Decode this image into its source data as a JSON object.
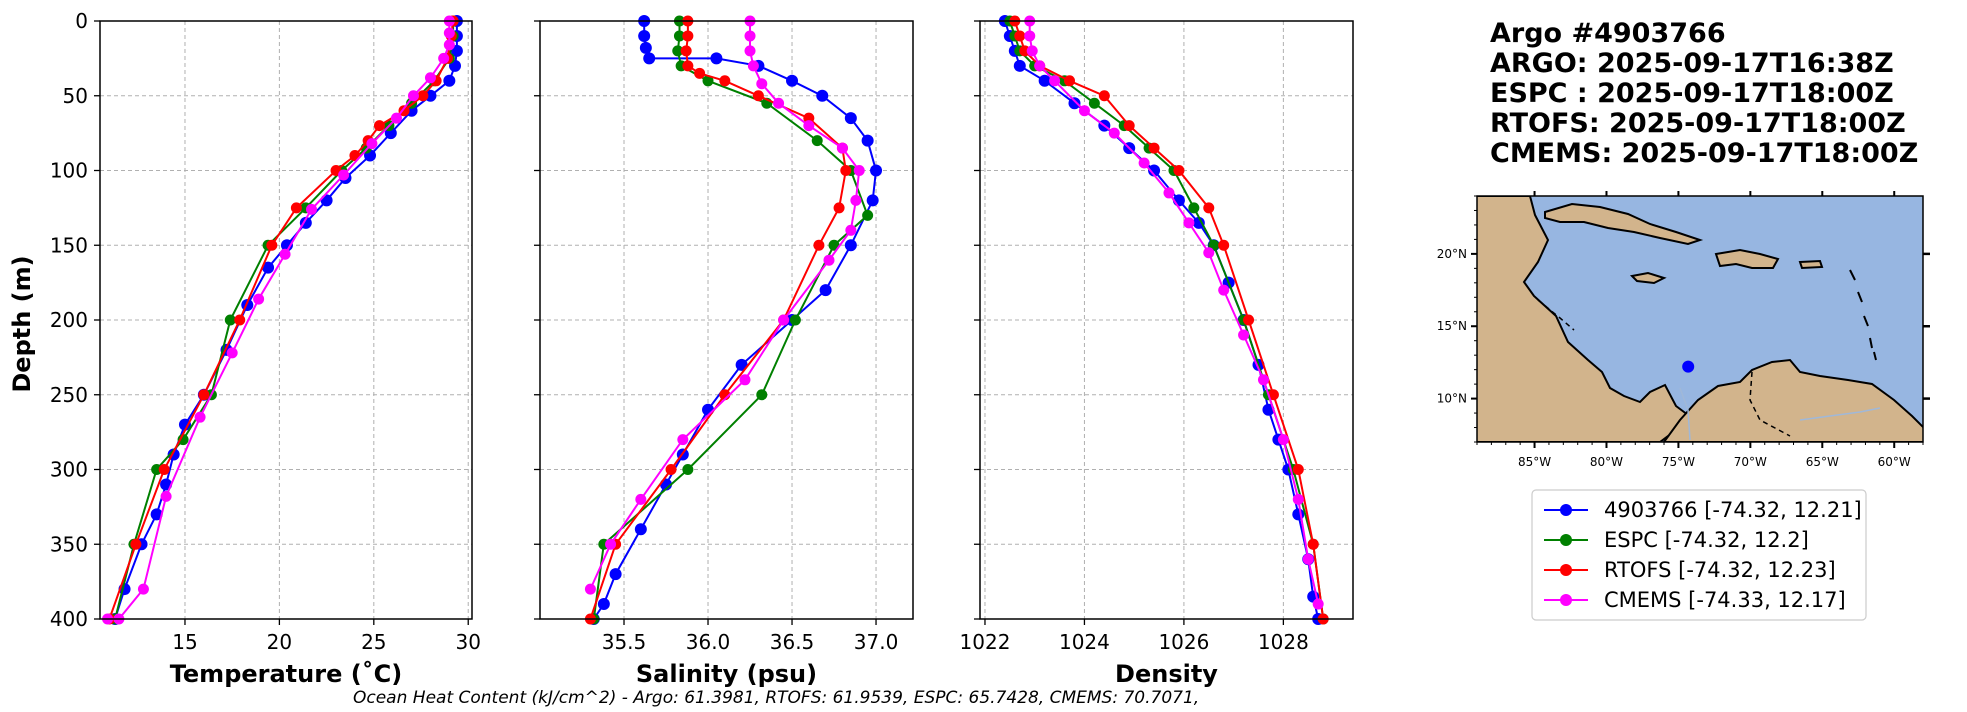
{
  "title_block": {
    "float_id": "Argo #4903766",
    "argo_time": "ARGO: 2025-09-17T16:38Z",
    "espc_time": "ESPC : 2025-09-17T18:00Z",
    "rtofs_time": "RTOFS: 2025-09-17T18:00Z",
    "cmems_time": "CMEMS: 2025-09-17T18:00Z"
  },
  "footer": "Ocean Heat Content (kJ/cm^2) - Argo: 61.3981,  RTOFS: 61.9539,  ESPC: 65.7428,  CMEMS: 70.7071,",
  "colors": {
    "argo": "#0000ff",
    "espc": "#008000",
    "rtofs": "#ff0000",
    "cmems": "#ff00ff",
    "ocean": "#97b6e1",
    "land": "#d2b48c"
  },
  "legend": [
    {
      "label": "4903766 [-74.32, 12.21]",
      "series": "argo"
    },
    {
      "label": "ESPC [-74.32, 12.2]",
      "series": "espc"
    },
    {
      "label": "RTOFS [-74.32, 12.23]",
      "series": "rtofs"
    },
    {
      "label": "CMEMS [-74.33, 12.17]",
      "series": "cmems"
    }
  ],
  "map": {
    "lon_range": [
      -89,
      -58
    ],
    "lat_range": [
      7,
      24
    ],
    "lon_ticks": [
      -85,
      -80,
      -75,
      -70,
      -65,
      -60
    ],
    "lon_tick_labels": [
      "85°W",
      "80°W",
      "75°W",
      "70°W",
      "65°W",
      "60°W"
    ],
    "lat_ticks": [
      20,
      15,
      10
    ],
    "lat_tick_labels": [
      "20°N",
      "15°N",
      "10°N"
    ],
    "float_position": {
      "lon": -74.32,
      "lat": 12.21
    }
  },
  "chart_data": [
    {
      "type": "line",
      "xlabel": "Temperature (˚C)",
      "ylabel": "Depth (m)",
      "xlim": [
        10.5,
        30.2
      ],
      "ylim": [
        400,
        0
      ],
      "xticks": [
        15,
        20,
        25,
        30
      ],
      "xtick_labels": [
        "15",
        "20",
        "25",
        "30"
      ],
      "yticks": [
        0,
        50,
        100,
        150,
        200,
        250,
        300,
        350,
        400
      ],
      "ytick_labels": [
        "0",
        "50",
        "100",
        "150",
        "200",
        "250",
        "300",
        "350",
        "400"
      ],
      "series": [
        {
          "name": "argo",
          "x": [
            29.4,
            29.4,
            29.4,
            29.3,
            29.0,
            28.0,
            27.0,
            25.9,
            24.8,
            23.5,
            22.5,
            21.4,
            20.4,
            19.4,
            18.3,
            17.2,
            16.0,
            15.0,
            14.4,
            14.0,
            13.5,
            12.7,
            11.8,
            11.3
          ],
          "y": [
            0,
            10,
            20,
            30,
            40,
            50,
            60,
            75,
            90,
            105,
            120,
            135,
            150,
            165,
            190,
            220,
            250,
            270,
            290,
            310,
            330,
            350,
            380,
            400
          ]
        },
        {
          "name": "espc",
          "x": [
            29.2,
            29.2,
            29.0,
            28.2,
            27.0,
            25.8,
            24.6,
            23.3,
            21.4,
            19.4,
            17.4,
            16.4,
            14.9,
            13.5,
            12.3,
            11.3
          ],
          "y": [
            0,
            10,
            25,
            40,
            55,
            70,
            85,
            100,
            125,
            150,
            200,
            250,
            280,
            300,
            350,
            400
          ]
        },
        {
          "name": "rtofs",
          "x": [
            29.2,
            29.1,
            28.9,
            28.3,
            27.6,
            26.6,
            25.3,
            24.7,
            24.0,
            23.0,
            20.9,
            19.6,
            17.9,
            16.0,
            13.9,
            12.4,
            11.0
          ],
          "y": [
            0,
            10,
            25,
            40,
            50,
            60,
            70,
            80,
            90,
            100,
            125,
            150,
            200,
            250,
            300,
            350,
            400
          ]
        },
        {
          "name": "cmems",
          "x": [
            29.0,
            29.0,
            29.0,
            28.7,
            28.0,
            27.1,
            26.2,
            24.9,
            23.4,
            21.7,
            20.3,
            18.9,
            17.5,
            15.8,
            14.0,
            12.8,
            11.5,
            10.9
          ],
          "y": [
            0,
            8,
            16,
            25,
            38,
            50,
            65,
            82,
            103,
            126,
            156,
            186,
            222,
            265,
            318,
            380,
            400,
            400
          ]
        }
      ]
    },
    {
      "type": "line",
      "xlabel": "Salinity (psu)",
      "ylabel": "",
      "xlim": [
        35.0,
        37.22
      ],
      "ylim": [
        400,
        0
      ],
      "xticks": [
        35.5,
        36.0,
        36.5,
        37.0
      ],
      "xtick_labels": [
        "35.5",
        "36.0",
        "36.5",
        "37.0"
      ],
      "yticks": [
        0,
        50,
        100,
        150,
        200,
        250,
        300,
        350,
        400
      ],
      "ytick_labels": [],
      "series": [
        {
          "name": "argo",
          "x": [
            35.62,
            35.62,
            35.63,
            35.65,
            36.05,
            36.3,
            36.5,
            36.68,
            36.85,
            36.95,
            37.0,
            36.98,
            36.85,
            36.7,
            36.5,
            36.2,
            36.0,
            35.85,
            35.75,
            35.6,
            35.45,
            35.38,
            35.32
          ],
          "y": [
            0,
            10,
            18,
            25,
            25,
            30,
            40,
            50,
            65,
            80,
            100,
            120,
            150,
            180,
            200,
            230,
            260,
            290,
            310,
            340,
            370,
            390,
            400
          ]
        },
        {
          "name": "espc",
          "x": [
            35.83,
            35.83,
            35.82,
            35.84,
            36.0,
            36.35,
            36.65,
            36.85,
            36.95,
            36.75,
            36.52,
            36.32,
            35.88,
            35.38,
            35.32
          ],
          "y": [
            0,
            10,
            20,
            30,
            40,
            55,
            80,
            100,
            130,
            150,
            200,
            250,
            300,
            350,
            400
          ]
        },
        {
          "name": "rtofs",
          "x": [
            35.88,
            35.88,
            35.87,
            35.88,
            35.95,
            36.1,
            36.3,
            36.6,
            36.8,
            36.82,
            36.78,
            36.66,
            36.45,
            36.1,
            35.78,
            35.45,
            35.3
          ],
          "y": [
            0,
            10,
            20,
            30,
            35,
            40,
            50,
            65,
            85,
            100,
            125,
            150,
            200,
            250,
            300,
            350,
            400
          ]
        },
        {
          "name": "cmems",
          "x": [
            36.25,
            36.25,
            36.25,
            36.27,
            36.32,
            36.42,
            36.6,
            36.8,
            36.9,
            36.88,
            36.85,
            36.72,
            36.45,
            36.22,
            35.85,
            35.6,
            35.42,
            35.3
          ],
          "y": [
            0,
            10,
            20,
            30,
            42,
            55,
            70,
            85,
            100,
            120,
            140,
            160,
            200,
            240,
            280,
            320,
            350,
            380
          ]
        }
      ]
    },
    {
      "type": "line",
      "xlabel": "Density",
      "ylabel": "",
      "xlim": [
        1021.9,
        1029.4
      ],
      "ylim": [
        400,
        0
      ],
      "xticks": [
        1022,
        1024,
        1026,
        1028
      ],
      "xtick_labels": [
        "1022",
        "1024",
        "1026",
        "1028"
      ],
      "yticks": [
        0,
        50,
        100,
        150,
        200,
        250,
        300,
        350,
        400
      ],
      "ytick_labels": [],
      "series": [
        {
          "name": "argo",
          "x": [
            1022.4,
            1022.5,
            1022.6,
            1022.7,
            1023.2,
            1023.8,
            1024.4,
            1024.9,
            1025.4,
            1025.9,
            1026.3,
            1026.6,
            1026.9,
            1027.2,
            1027.5,
            1027.7,
            1027.9,
            1028.1,
            1028.3,
            1028.5,
            1028.6,
            1028.7
          ],
          "y": [
            0,
            10,
            20,
            30,
            40,
            55,
            70,
            85,
            100,
            120,
            135,
            150,
            175,
            200,
            230,
            260,
            280,
            300,
            330,
            360,
            385,
            400
          ]
        },
        {
          "name": "espc",
          "x": [
            1022.5,
            1022.6,
            1022.7,
            1023.0,
            1023.6,
            1024.2,
            1024.8,
            1025.3,
            1025.8,
            1026.2,
            1026.6,
            1027.2,
            1027.7,
            1028.2,
            1028.6,
            1028.8
          ],
          "y": [
            0,
            10,
            20,
            30,
            40,
            55,
            70,
            85,
            100,
            125,
            150,
            200,
            250,
            300,
            350,
            400
          ]
        },
        {
          "name": "rtofs",
          "x": [
            1022.6,
            1022.7,
            1022.8,
            1023.1,
            1023.7,
            1024.4,
            1024.9,
            1025.4,
            1025.9,
            1026.5,
            1026.8,
            1027.3,
            1027.8,
            1028.3,
            1028.6,
            1028.8
          ],
          "y": [
            0,
            10,
            20,
            30,
            40,
            50,
            70,
            85,
            100,
            125,
            150,
            200,
            250,
            300,
            350,
            400
          ]
        },
        {
          "name": "cmems",
          "x": [
            1022.9,
            1022.9,
            1022.95,
            1023.1,
            1023.4,
            1024.0,
            1024.6,
            1025.2,
            1025.7,
            1026.1,
            1026.5,
            1026.8,
            1027.2,
            1027.6,
            1028.0,
            1028.3,
            1028.5,
            1028.7
          ],
          "y": [
            0,
            10,
            20,
            30,
            40,
            60,
            75,
            95,
            115,
            135,
            155,
            180,
            210,
            240,
            280,
            320,
            360,
            390
          ]
        }
      ]
    }
  ]
}
